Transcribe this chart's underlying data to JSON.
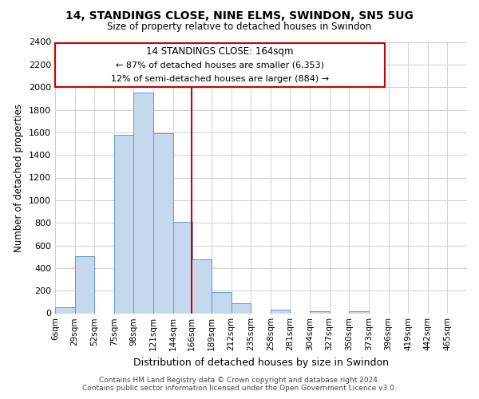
{
  "title": "14, STANDINGS CLOSE, NINE ELMS, SWINDON, SN5 5UG",
  "subtitle": "Size of property relative to detached houses in Swindon",
  "xlabel": "Distribution of detached houses by size in Swindon",
  "ylabel": "Number of detached properties",
  "bar_color": "#c5d8ed",
  "bar_edge_color": "#5b9bd5",
  "grid_color": "#d0d0d0",
  "bin_labels": [
    "6sqm",
    "29sqm",
    "52sqm",
    "75sqm",
    "98sqm",
    "121sqm",
    "144sqm",
    "166sqm",
    "189sqm",
    "212sqm",
    "235sqm",
    "258sqm",
    "281sqm",
    "304sqm",
    "327sqm",
    "350sqm",
    "373sqm",
    "396sqm",
    "419sqm",
    "442sqm",
    "465sqm"
  ],
  "bar_heights": [
    55,
    505,
    0,
    1580,
    1950,
    1590,
    810,
    480,
    185,
    90,
    0,
    35,
    0,
    15,
    0,
    15,
    0,
    0,
    0,
    0
  ],
  "ylim": [
    0,
    2400
  ],
  "yticks": [
    0,
    200,
    400,
    600,
    800,
    1000,
    1200,
    1400,
    1600,
    1800,
    2000,
    2200,
    2400
  ],
  "property_line_label": "14 STANDINGS CLOSE: 164sqm",
  "annotation_line1": "← 87% of detached houses are smaller (6,353)",
  "annotation_line2": "12% of semi-detached houses are larger (884) →",
  "annotation_box_edge": "#cc0000",
  "footer_line1": "Contains HM Land Registry data © Crown copyright and database right 2024.",
  "footer_line2": "Contains public sector information licensed under the Open Government Licence v3.0.",
  "line_color": "#cc0000",
  "bin_starts": [
    6,
    29,
    52,
    75,
    98,
    121,
    144,
    166,
    189,
    212,
    235,
    258,
    281,
    304,
    327,
    350,
    373,
    396,
    419,
    442
  ],
  "bin_width": 23,
  "xmin": 6,
  "xmax": 488
}
